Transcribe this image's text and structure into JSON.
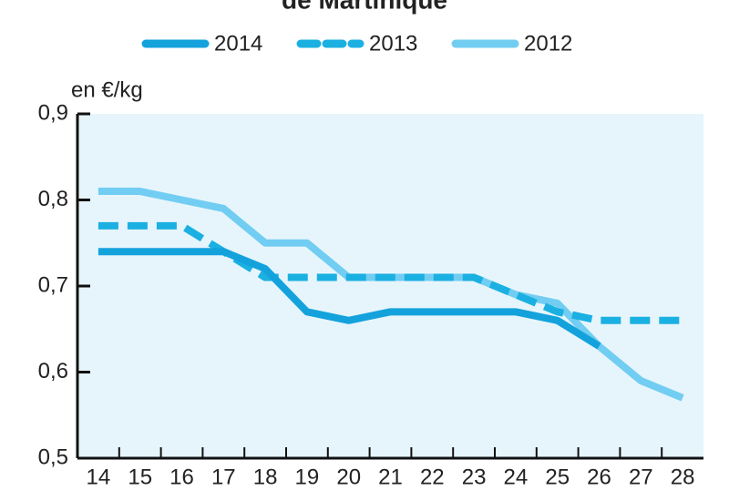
{
  "chart_data": {
    "type": "line",
    "title": "de Martinique",
    "y_label": "en €/kg",
    "categories": [
      "14",
      "15",
      "16",
      "17",
      "18",
      "19",
      "20",
      "21",
      "22",
      "23",
      "24",
      "25",
      "26",
      "27",
      "28"
    ],
    "series": [
      {
        "name": "2014",
        "color": "#14a2dc",
        "dashed": false,
        "values": [
          0.74,
          0.74,
          0.74,
          0.74,
          0.72,
          0.67,
          0.66,
          0.67,
          0.67,
          0.67,
          0.67,
          0.66,
          0.63,
          null,
          null
        ]
      },
      {
        "name": "2013",
        "color": "#1bb0e2",
        "dashed": true,
        "values": [
          0.77,
          0.77,
          0.77,
          0.74,
          0.71,
          0.71,
          0.71,
          0.71,
          0.71,
          0.71,
          0.69,
          0.67,
          0.66,
          0.66,
          0.66
        ]
      },
      {
        "name": "2012",
        "color": "#72cdf2",
        "dashed": false,
        "values": [
          0.81,
          0.81,
          0.8,
          0.79,
          0.75,
          0.75,
          0.71,
          0.71,
          0.71,
          0.71,
          0.69,
          0.68,
          0.63,
          0.59,
          0.57
        ]
      }
    ],
    "ylim": [
      0.5,
      0.9
    ],
    "yticks": [
      {
        "value": 0.5,
        "label": "0,5"
      },
      {
        "value": 0.6,
        "label": "0,6"
      },
      {
        "value": 0.7,
        "label": "0,7"
      },
      {
        "value": 0.8,
        "label": "0,8"
      },
      {
        "value": 0.9,
        "label": "0,9"
      }
    ],
    "plot_background": "#e6f5fc"
  }
}
